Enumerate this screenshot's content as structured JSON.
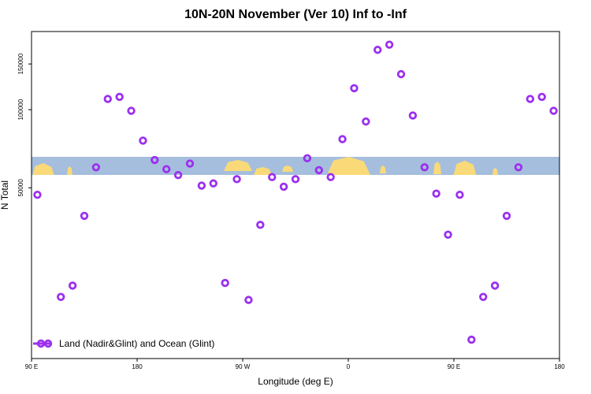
{
  "chart_data": {
    "type": "scatter",
    "title": "10N-20N November (Ver 10)   Inf to -Inf",
    "xlabel": "Longitude (deg E)",
    "ylabel": "N Total",
    "x_tick_labels": [
      "90 E",
      "180",
      "90 W",
      "0",
      "90 E",
      "180"
    ],
    "x_ticks": [
      90,
      180,
      270,
      360,
      450,
      540
    ],
    "xlim": [
      90,
      540
    ],
    "y_scale": "log",
    "y_ticks": [
      50000,
      100000,
      150000
    ],
    "y_tick_labels": [
      "50000",
      "100000",
      "150000"
    ],
    "ylim": [
      11000,
      200000
    ],
    "grid": false,
    "legend": {
      "position": "bottom-left",
      "entries": [
        "Land (Nadir&Glint) and Ocean (Glint)"
      ]
    },
    "colors": {
      "marker": "#9b30ef",
      "ocean_band": "#a6bedd",
      "land_band": "#fada78"
    },
    "background_map_band": {
      "description": "world map strip",
      "lat_range": "10N-20N"
    },
    "series": [
      {
        "name": "Land (Nadir&Glint) and Ocean (Glint)",
        "x": [
          95,
          115,
          125,
          135,
          145,
          155,
          165,
          175,
          185,
          195,
          205,
          215,
          225,
          235,
          245,
          255,
          265,
          275,
          285,
          295,
          305,
          315,
          325,
          335,
          345,
          355,
          365,
          375,
          385,
          395,
          405,
          415,
          425,
          435,
          445,
          455,
          465,
          475,
          485,
          495,
          505,
          515,
          525,
          535
        ],
        "y": [
          47000,
          19000,
          21000,
          39000,
          60000,
          110000,
          112000,
          99000,
          76000,
          64000,
          59000,
          56000,
          62000,
          51000,
          52000,
          21500,
          54000,
          18500,
          36000,
          55000,
          50500,
          54000,
          65000,
          58500,
          55000,
          77000,
          121000,
          90000,
          170000,
          178000,
          137000,
          95000,
          60000,
          47500,
          33000,
          47000,
          13000,
          19000,
          21000,
          39000,
          60000,
          110000,
          112000,
          99000
        ]
      }
    ]
  }
}
